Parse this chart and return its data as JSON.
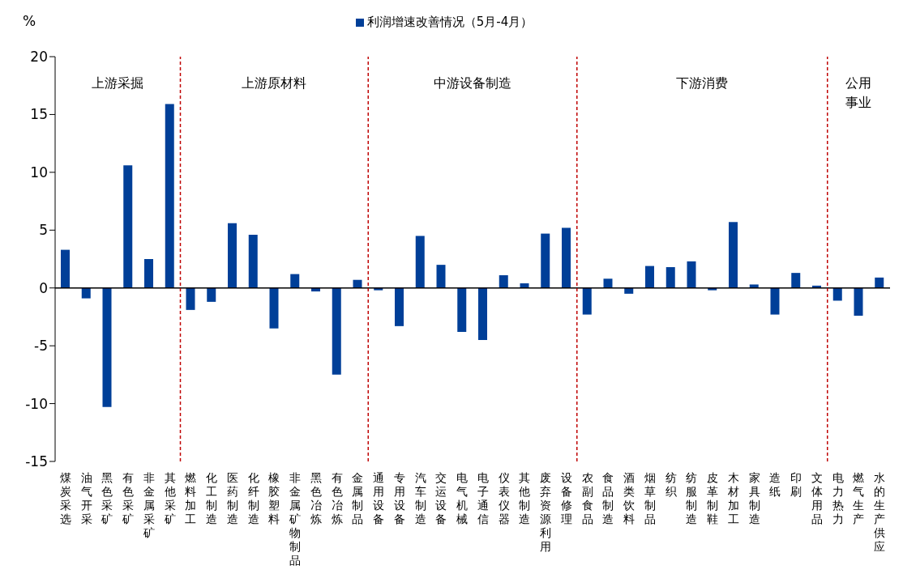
{
  "chart_data": {
    "type": "bar",
    "ylabel": "%",
    "categories": [
      "煤炭采选",
      "油气开采",
      "黑色采矿",
      "有色采矿",
      "非金属采矿",
      "其他采矿",
      "燃料加工",
      "化工制造",
      "医药制造",
      "化纤制造",
      "橡胶塑料",
      "非金属矿物制品",
      "黑色冶炼",
      "有色冶炼",
      "金属制品",
      "通用设备",
      "专用设备",
      "汽车制造",
      "交运设备",
      "电气机械",
      "电子通信",
      "仪表仪器",
      "其他制造",
      "废弃资源利用",
      "设备修理",
      "农副食品",
      "食品制造",
      "酒类饮料",
      "烟草制品",
      "纺织",
      "纺服制造",
      "皮革制鞋",
      "木材加工",
      "家具制造",
      "造纸",
      "印刷",
      "文体用品",
      "电力热力",
      "燃气生产",
      "水的生产供应"
    ],
    "series": [
      {
        "name": "利润增速改善情况（5月-4月）",
        "color": "#003f98",
        "values": [
          3.3,
          -0.9,
          -10.3,
          10.6,
          2.5,
          15.9,
          -1.9,
          -1.2,
          5.6,
          4.6,
          -3.5,
          1.2,
          -0.3,
          -7.5,
          0.7,
          -0.2,
          -3.3,
          4.5,
          2.0,
          -3.8,
          -4.5,
          1.1,
          0.4,
          4.7,
          5.2,
          -2.3,
          0.8,
          -0.5,
          1.9,
          1.8,
          2.3,
          -0.2,
          5.7,
          0.3,
          -2.3,
          1.3,
          0.2,
          -1.1,
          -2.4,
          0.9
        ]
      }
    ],
    "ylim": [
      -15,
      20
    ],
    "yticks": [
      -15,
      -10,
      -5,
      0,
      5,
      10,
      15,
      20
    ],
    "grid": false,
    "legend": "top",
    "annotations": [
      "上游采掘",
      "上游原材料",
      "中游设备制造",
      "下游消费",
      "公用事业"
    ]
  }
}
